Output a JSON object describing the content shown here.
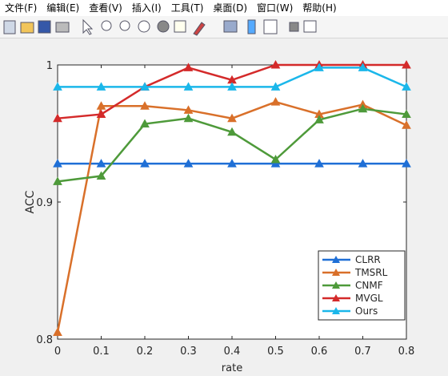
{
  "menu": [
    "文件(F)",
    "编辑(E)",
    "查看(V)",
    "插入(I)",
    "工具(T)",
    "桌面(D)",
    "窗口(W)",
    "帮助(H)"
  ],
  "chart_data": {
    "type": "line",
    "xlabel": "rate",
    "ylabel": "ACC",
    "x": [
      0,
      0.1,
      0.2,
      0.3,
      0.4,
      0.5,
      0.6,
      0.7,
      0.8
    ],
    "xlim": [
      0,
      0.8
    ],
    "xticks": [
      0,
      0.1,
      0.2,
      0.3,
      0.4,
      0.5,
      0.6,
      0.7,
      0.8
    ],
    "ylim": [
      0.8,
      1
    ],
    "yticks": [
      0.8,
      0.9,
      1
    ],
    "legend": "southeast",
    "series": [
      {
        "name": "CLRR",
        "color": "#1f6fd6",
        "values": [
          0.928,
          0.928,
          0.928,
          0.928,
          0.928,
          0.928,
          0.928,
          0.928,
          0.928
        ]
      },
      {
        "name": "TMSRL",
        "color": "#d9702a",
        "values": [
          0.805,
          0.97,
          0.97,
          0.967,
          0.961,
          0.973,
          0.964,
          0.971,
          0.956
        ]
      },
      {
        "name": "CNMF",
        "color": "#4e9a3a",
        "values": [
          0.915,
          0.919,
          0.957,
          0.961,
          0.951,
          0.931,
          0.96,
          0.968,
          0.964
        ]
      },
      {
        "name": "MVGL",
        "color": "#d42a2a",
        "values": [
          0.961,
          0.964,
          0.984,
          0.998,
          0.989,
          1.0,
          1.0,
          1.0,
          1.0
        ]
      },
      {
        "name": "Ours",
        "color": "#1bb7ea",
        "values": [
          0.984,
          0.984,
          0.984,
          0.984,
          0.984,
          0.984,
          0.998,
          0.998,
          0.984
        ]
      }
    ]
  }
}
